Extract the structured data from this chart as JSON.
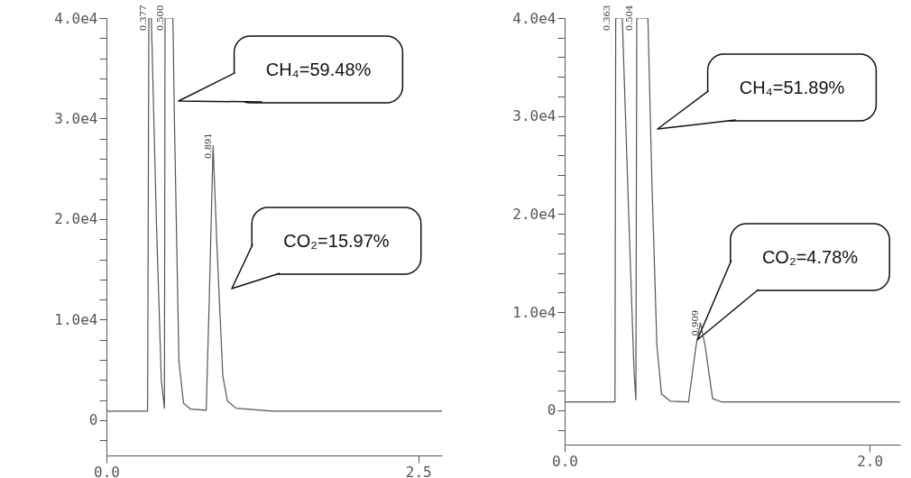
{
  "chart_data": [
    {
      "type": "line",
      "xlim": [
        0,
        2.69
      ],
      "ylim": [
        -3500,
        40000
      ],
      "xticks": [
        {
          "value": 0,
          "label": "0.0"
        },
        {
          "value": 2.5,
          "label": "2.5"
        }
      ],
      "yticks": [
        {
          "value": -2000,
          "label": null
        },
        0,
        {
          "value": 2000,
          "label": null
        },
        {
          "value": 4000,
          "label": null
        },
        {
          "value": 6000,
          "label": null
        },
        {
          "value": 8000,
          "label": null
        },
        {
          "value": 10000,
          "label": "1.0e4"
        },
        {
          "value": 12000,
          "label": null
        },
        {
          "value": 14000,
          "label": null
        },
        {
          "value": 16000,
          "label": null
        },
        {
          "value": 18000,
          "label": null
        },
        {
          "value": 20000,
          "label": "2.0e4"
        },
        {
          "value": 22000,
          "label": null
        },
        {
          "value": 24000,
          "label": null
        },
        {
          "value": 26000,
          "label": null
        },
        {
          "value": 28000,
          "label": null
        },
        {
          "value": 30000,
          "label": "3.0e4"
        },
        {
          "value": 32000,
          "label": null
        },
        {
          "value": 34000,
          "label": null
        },
        {
          "value": 36000,
          "label": null
        },
        {
          "value": 38000,
          "label": null
        },
        {
          "value": 40000,
          "label": "4.0e4"
        }
      ],
      "series": [
        {
          "color": "#555555",
          "x": [
            0,
            0.33,
            0.34,
            0.36,
            0.4,
            0.44,
            0.465,
            0.47,
            0.533,
            0.545,
            0.581,
            0.618,
            0.676,
            0.8,
            0.824,
            0.855,
            0.884,
            0.933,
            0.97,
            1.04,
            1.33,
            2.69
          ],
          "values": [
            900,
            900,
            40000,
            40000,
            20000,
            4000,
            1200,
            40000,
            40000,
            29900,
            5900,
            1700,
            1100,
            1000,
            11900,
            27300,
            17900,
            4400,
            1900,
            1200,
            900,
            900
          ]
        }
      ],
      "grid": false,
      "marker": "none",
      "line_style": "solid",
      "annotations": [
        {
          "text": "0.377",
          "x": 0.35,
          "y": 40000
        },
        {
          "text": "0.500",
          "x": 0.485,
          "y": 40000
        },
        {
          "text": "0.891",
          "x": 0.87,
          "y": 27300
        },
        "CH₄=59.48%",
        "CO₂=15.97%"
      ]
    },
    {
      "type": "line",
      "xlim": [
        0,
        2.2
      ],
      "ylim": [
        -3500,
        40000
      ],
      "xticks": [
        {
          "value": 0,
          "label": "0.0"
        },
        {
          "value": 2,
          "label": "2.0"
        }
      ],
      "yticks": [
        {
          "value": -2000,
          "label": null
        },
        0,
        {
          "value": 2000,
          "label": null
        },
        {
          "value": 4000,
          "label": null
        },
        {
          "value": 6000,
          "label": null
        },
        {
          "value": 8000,
          "label": null
        },
        {
          "value": 10000,
          "label": "1.0e4"
        },
        {
          "value": 12000,
          "label": null
        },
        {
          "value": 14000,
          "label": null
        },
        {
          "value": 16000,
          "label": null
        },
        {
          "value": 18000,
          "label": null
        },
        {
          "value": 20000,
          "label": "2.0e4"
        },
        {
          "value": 22000,
          "label": null
        },
        {
          "value": 24000,
          "label": null
        },
        {
          "value": 26000,
          "label": null
        },
        {
          "value": 28000,
          "label": null
        },
        {
          "value": 30000,
          "label": "3.0e4"
        },
        {
          "value": 32000,
          "label": null
        },
        {
          "value": 34000,
          "label": null
        },
        {
          "value": 36000,
          "label": null
        },
        {
          "value": 38000,
          "label": null
        },
        {
          "value": 40000,
          "label": "4.0e4"
        }
      ],
      "series": [
        {
          "color": "#555555",
          "x": [
            0,
            0.33,
            0.335,
            0.378,
            0.42,
            0.455,
            0.467,
            0.473,
            0.546,
            0.572,
            0.605,
            0.635,
            0.694,
            0.812,
            0.862,
            0.89,
            0.921,
            0.97,
            1.03,
            2.2
          ],
          "values": [
            850,
            850,
            40000,
            40000,
            20000,
            4000,
            1080,
            40000,
            40000,
            23400,
            6600,
            1680,
            920,
            850,
            6600,
            8900,
            6600,
            1200,
            850,
            850
          ]
        }
      ],
      "grid": false,
      "marker": "none",
      "line_style": "solid",
      "annotations": [
        {
          "text": "0.363",
          "x": 0.32,
          "y": 40000
        },
        {
          "text": "0.504",
          "x": 0.467,
          "y": 40000
        },
        {
          "text": "0.909",
          "x": 0.9,
          "y": 8900
        },
        "CH₄=51.89%",
        "CO₂=4.78%"
      ]
    }
  ]
}
